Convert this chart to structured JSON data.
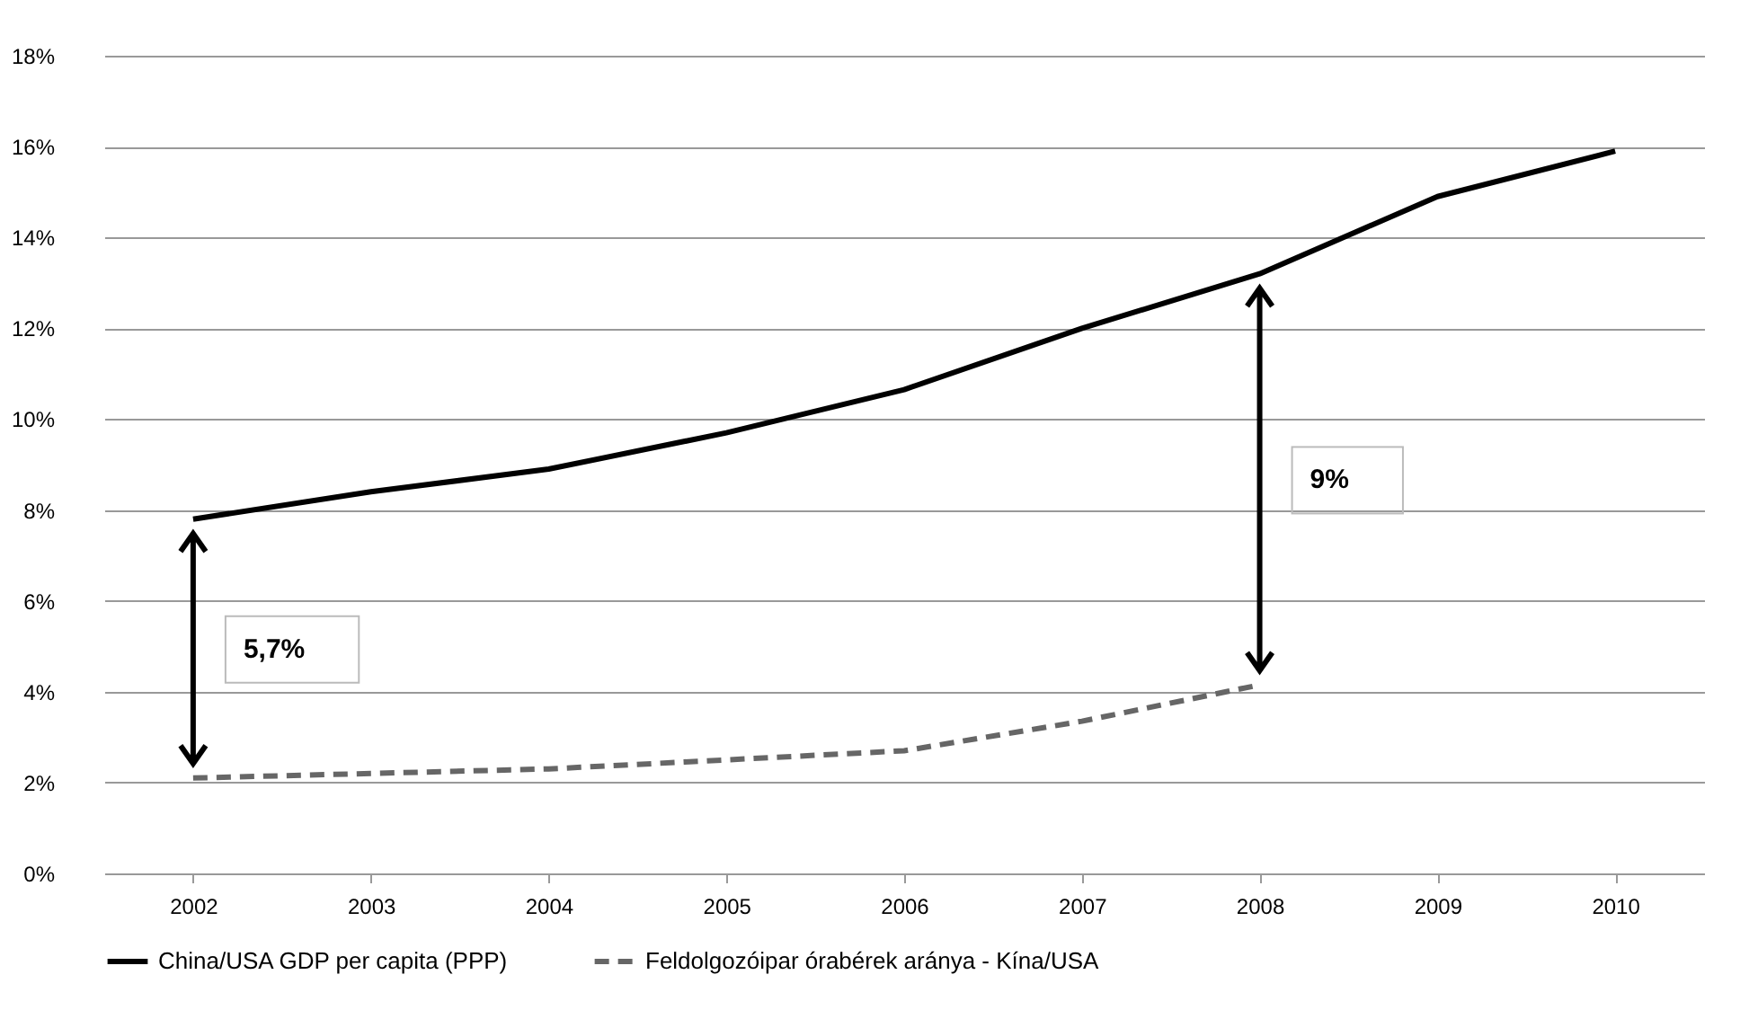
{
  "chart_data": {
    "type": "line",
    "categories": [
      "2002",
      "2003",
      "2004",
      "2005",
      "2006",
      "2007",
      "2008",
      "2009",
      "2010"
    ],
    "series": [
      {
        "name": "China/USA GDP per capita (PPP)",
        "color": "#000000",
        "line_style": "solid",
        "values": [
          7.8,
          8.4,
          8.9,
          9.7,
          10.65,
          12.0,
          13.2,
          14.9,
          15.9
        ]
      },
      {
        "name": "Feldolgozóipar órabérek aránya - Kína/USA",
        "color": "#666666",
        "line_style": "dashed",
        "values": [
          2.1,
          2.2,
          2.3,
          2.5,
          2.7,
          3.35,
          4.15,
          null,
          null
        ]
      }
    ],
    "ylim": [
      0,
      18
    ],
    "yticks": [
      {
        "value": 0,
        "label": "0%"
      },
      {
        "value": 2,
        "label": "2%"
      },
      {
        "value": 4,
        "label": "4%"
      },
      {
        "value": 6,
        "label": "6%"
      },
      {
        "value": 8,
        "label": "8%"
      },
      {
        "value": 10,
        "label": "10%"
      },
      {
        "value": 12,
        "label": "12%"
      },
      {
        "value": 14,
        "label": "14%"
      },
      {
        "value": 16,
        "label": "16%"
      },
      {
        "value": 18,
        "label": "18%"
      }
    ],
    "grid": "y",
    "legend": "bottom",
    "marker": "none",
    "annotations": [
      "5,7%",
      "9%"
    ]
  }
}
